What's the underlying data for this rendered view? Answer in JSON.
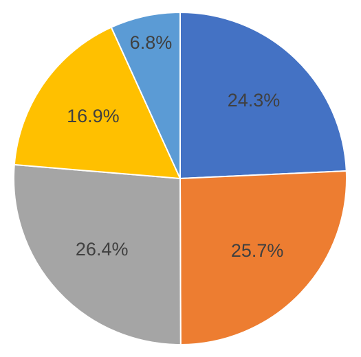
{
  "chart_data": {
    "type": "pie",
    "values": [
      24.3,
      25.7,
      26.4,
      16.9,
      6.8
    ],
    "value_labels": [
      "24.3%",
      "25.7%",
      "26.4%",
      "16.9%",
      "6.8%"
    ],
    "colors": [
      "#4472c4",
      "#ed7d31",
      "#a5a5a5",
      "#ffc000",
      "#5b9bd5"
    ]
  }
}
